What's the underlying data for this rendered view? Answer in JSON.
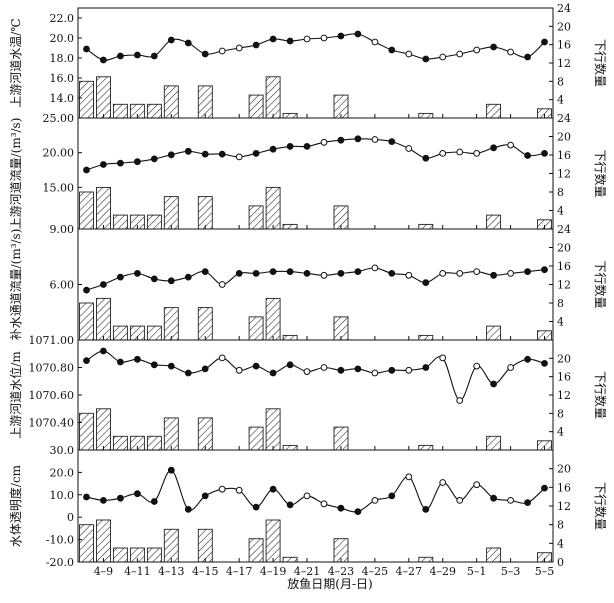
{
  "chart_data": [
    {
      "type": "bar+line",
      "ylabel": "上游河道水温/℃",
      "y2label": "下行数量",
      "ylim": [
        12.0,
        23.0
      ],
      "yticks": [
        14.0,
        16.0,
        18.0,
        20.0,
        22.0
      ],
      "ytick_labels": [
        "14.0",
        "16.0",
        "18.0",
        "20.0",
        "22.0"
      ],
      "y2lim": [
        0,
        24
      ],
      "y2ticks": [
        4,
        8,
        12,
        16,
        20,
        24
      ],
      "line": [
        {
          "date": "4-8",
          "value": 18.9,
          "filled": true
        },
        {
          "date": "4-9",
          "value": 17.8,
          "filled": true
        },
        {
          "date": "4-10",
          "value": 18.2,
          "filled": true
        },
        {
          "date": "4-11",
          "value": 18.3,
          "filled": true
        },
        {
          "date": "4-12",
          "value": 18.2,
          "filled": true
        },
        {
          "date": "4-13",
          "value": 19.8,
          "filled": true
        },
        {
          "date": "4-14",
          "value": 19.5,
          "filled": true
        },
        {
          "date": "4-15",
          "value": 18.4,
          "filled": true
        },
        {
          "date": "4-16",
          "value": 18.7,
          "filled": false
        },
        {
          "date": "4-17",
          "value": 19.0,
          "filled": false
        },
        {
          "date": "4-18",
          "value": 19.3,
          "filled": true
        },
        {
          "date": "4-19",
          "value": 19.9,
          "filled": true
        },
        {
          "date": "4-20",
          "value": 19.7,
          "filled": true
        },
        {
          "date": "4-21",
          "value": 19.9,
          "filled": false
        },
        {
          "date": "4-22",
          "value": 20.0,
          "filled": false
        },
        {
          "date": "4-23",
          "value": 20.2,
          "filled": true
        },
        {
          "date": "4-24",
          "value": 20.4,
          "filled": true
        },
        {
          "date": "4-25",
          "value": 19.6,
          "filled": false
        },
        {
          "date": "4-26",
          "value": 18.8,
          "filled": true
        },
        {
          "date": "4-27",
          "value": 18.4,
          "filled": false
        },
        {
          "date": "4-28",
          "value": 17.9,
          "filled": true
        },
        {
          "date": "4-29",
          "value": 18.1,
          "filled": false
        },
        {
          "date": "4-30",
          "value": 18.4,
          "filled": false
        },
        {
          "date": "5-1",
          "value": 18.8,
          "filled": false
        },
        {
          "date": "5-2",
          "value": 19.1,
          "filled": true
        },
        {
          "date": "5-3",
          "value": 18.6,
          "filled": false
        },
        {
          "date": "5-4",
          "value": 18.1,
          "filled": true
        },
        {
          "date": "5-5",
          "value": 19.6,
          "filled": true
        }
      ]
    },
    {
      "type": "bar+line",
      "ylabel": "上游河道流量/(m³/s)",
      "y2label": "下行数量",
      "ylim": [
        9.0,
        25.0
      ],
      "yticks": [
        9.0,
        15.0,
        20.0,
        25.0
      ],
      "ytick_labels": [
        "9.00",
        "15.00",
        "20.00",
        "25.00"
      ],
      "y2lim": [
        0,
        24
      ],
      "y2ticks": [
        4,
        8,
        12,
        16,
        20,
        24
      ],
      "line": [
        {
          "date": "4-8",
          "value": 17.5,
          "filled": true
        },
        {
          "date": "4-9",
          "value": 18.3,
          "filled": true
        },
        {
          "date": "4-10",
          "value": 18.5,
          "filled": true
        },
        {
          "date": "4-11",
          "value": 18.7,
          "filled": true
        },
        {
          "date": "4-12",
          "value": 19.1,
          "filled": true
        },
        {
          "date": "4-13",
          "value": 19.7,
          "filled": true
        },
        {
          "date": "4-14",
          "value": 20.2,
          "filled": true
        },
        {
          "date": "4-15",
          "value": 19.8,
          "filled": true
        },
        {
          "date": "4-16",
          "value": 19.8,
          "filled": true
        },
        {
          "date": "4-17",
          "value": 19.4,
          "filled": false
        },
        {
          "date": "4-18",
          "value": 19.9,
          "filled": true
        },
        {
          "date": "4-19",
          "value": 20.5,
          "filled": true
        },
        {
          "date": "4-20",
          "value": 20.9,
          "filled": true
        },
        {
          "date": "4-21",
          "value": 20.9,
          "filled": true
        },
        {
          "date": "4-22",
          "value": 21.5,
          "filled": false
        },
        {
          "date": "4-23",
          "value": 21.8,
          "filled": true
        },
        {
          "date": "4-24",
          "value": 22.0,
          "filled": true
        },
        {
          "date": "4-25",
          "value": 21.9,
          "filled": false
        },
        {
          "date": "4-26",
          "value": 21.6,
          "filled": true
        },
        {
          "date": "4-27",
          "value": 20.6,
          "filled": false
        },
        {
          "date": "4-28",
          "value": 19.2,
          "filled": true
        },
        {
          "date": "4-29",
          "value": 19.9,
          "filled": false
        },
        {
          "date": "4-30",
          "value": 20.1,
          "filled": false
        },
        {
          "date": "5-1",
          "value": 19.9,
          "filled": false
        },
        {
          "date": "5-2",
          "value": 20.7,
          "filled": true
        },
        {
          "date": "5-3",
          "value": 21.1,
          "filled": false
        },
        {
          "date": "5-4",
          "value": 19.6,
          "filled": true
        },
        {
          "date": "5-5",
          "value": 19.9,
          "filled": true
        }
      ]
    },
    {
      "type": "bar+line",
      "ylabel": "补水通道流量/(m³/s)",
      "y2label": "下行数量",
      "ylim": [
        3.0,
        9.0
      ],
      "yticks": [
        6.0
      ],
      "ytick_labels": [
        "6.00"
      ],
      "y2lim": [
        0,
        24
      ],
      "y2ticks": [
        4,
        8,
        12,
        16,
        20,
        24
      ],
      "line": [
        {
          "date": "4-8",
          "value": 5.7,
          "filled": true
        },
        {
          "date": "4-9",
          "value": 6.0,
          "filled": true
        },
        {
          "date": "4-10",
          "value": 6.4,
          "filled": true
        },
        {
          "date": "4-11",
          "value": 6.6,
          "filled": true
        },
        {
          "date": "4-12",
          "value": 6.3,
          "filled": true
        },
        {
          "date": "4-13",
          "value": 6.2,
          "filled": true
        },
        {
          "date": "4-14",
          "value": 6.4,
          "filled": true
        },
        {
          "date": "4-15",
          "value": 6.7,
          "filled": true
        },
        {
          "date": "4-16",
          "value": 6.0,
          "filled": false
        },
        {
          "date": "4-17",
          "value": 6.6,
          "filled": true
        },
        {
          "date": "4-18",
          "value": 6.6,
          "filled": true
        },
        {
          "date": "4-19",
          "value": 6.7,
          "filled": true
        },
        {
          "date": "4-20",
          "value": 6.7,
          "filled": true
        },
        {
          "date": "4-21",
          "value": 6.6,
          "filled": true
        },
        {
          "date": "4-22",
          "value": 6.5,
          "filled": false
        },
        {
          "date": "4-23",
          "value": 6.6,
          "filled": true
        },
        {
          "date": "4-24",
          "value": 6.7,
          "filled": true
        },
        {
          "date": "4-25",
          "value": 6.9,
          "filled": false
        },
        {
          "date": "4-26",
          "value": 6.6,
          "filled": true
        },
        {
          "date": "4-27",
          "value": 6.5,
          "filled": false
        },
        {
          "date": "4-28",
          "value": 6.1,
          "filled": true
        },
        {
          "date": "4-29",
          "value": 6.6,
          "filled": false
        },
        {
          "date": "4-30",
          "value": 6.6,
          "filled": false
        },
        {
          "date": "5-1",
          "value": 6.7,
          "filled": false
        },
        {
          "date": "5-2",
          "value": 6.5,
          "filled": true
        },
        {
          "date": "5-3",
          "value": 6.6,
          "filled": false
        },
        {
          "date": "5-4",
          "value": 6.7,
          "filled": true
        },
        {
          "date": "5-5",
          "value": 6.8,
          "filled": true
        }
      ]
    },
    {
      "type": "bar+line",
      "ylabel": "上游河道水位/m",
      "y2label": "下行数量",
      "ylim": [
        1070.2,
        1071.0
      ],
      "yticks": [
        1070.4,
        1070.6,
        1070.8,
        1071.0
      ],
      "ytick_labels": [
        "1070.40",
        "1070.60",
        "1070.80",
        "1071.00"
      ],
      "y2lim": [
        0,
        24
      ],
      "y2ticks": [
        4,
        8,
        12,
        16,
        20
      ],
      "line": [
        {
          "date": "4-8",
          "value": 1070.85,
          "filled": true
        },
        {
          "date": "4-9",
          "value": 1070.92,
          "filled": true
        },
        {
          "date": "4-10",
          "value": 1070.84,
          "filled": true
        },
        {
          "date": "4-11",
          "value": 1070.86,
          "filled": true
        },
        {
          "date": "4-12",
          "value": 1070.82,
          "filled": true
        },
        {
          "date": "4-13",
          "value": 1070.81,
          "filled": true
        },
        {
          "date": "4-14",
          "value": 1070.76,
          "filled": true
        },
        {
          "date": "4-15",
          "value": 1070.79,
          "filled": true
        },
        {
          "date": "4-16",
          "value": 1070.87,
          "filled": false
        },
        {
          "date": "4-17",
          "value": 1070.78,
          "filled": false
        },
        {
          "date": "4-18",
          "value": 1070.81,
          "filled": true
        },
        {
          "date": "4-19",
          "value": 1070.76,
          "filled": true
        },
        {
          "date": "4-20",
          "value": 1070.82,
          "filled": true
        },
        {
          "date": "4-21",
          "value": 1070.77,
          "filled": false
        },
        {
          "date": "4-22",
          "value": 1070.8,
          "filled": false
        },
        {
          "date": "4-23",
          "value": 1070.78,
          "filled": true
        },
        {
          "date": "4-24",
          "value": 1070.79,
          "filled": true
        },
        {
          "date": "4-25",
          "value": 1070.76,
          "filled": false
        },
        {
          "date": "4-26",
          "value": 1070.78,
          "filled": true
        },
        {
          "date": "4-27",
          "value": 1070.78,
          "filled": false
        },
        {
          "date": "4-28",
          "value": 1070.8,
          "filled": true
        },
        {
          "date": "4-29",
          "value": 1070.87,
          "filled": false
        },
        {
          "date": "4-30",
          "value": 1070.56,
          "filled": false
        },
        {
          "date": "5-1",
          "value": 1070.81,
          "filled": false
        },
        {
          "date": "5-2",
          "value": 1070.68,
          "filled": true
        },
        {
          "date": "5-3",
          "value": 1070.8,
          "filled": false
        },
        {
          "date": "5-4",
          "value": 1070.86,
          "filled": true
        },
        {
          "date": "5-5",
          "value": 1070.83,
          "filled": true
        }
      ]
    },
    {
      "type": "bar+line",
      "ylabel": "水体透明度/cm",
      "y2label": "下行数量",
      "xlabel": "放鱼日期(月-日)",
      "ylim": [
        -20.0,
        30.0
      ],
      "yticks": [
        -20.0,
        -10.0,
        0,
        10.0,
        20.0,
        30.0
      ],
      "ytick_labels": [
        "-20.0",
        "-10.0",
        "0",
        "10.0",
        "20.0",
        "30.0"
      ],
      "y2lim": [
        0,
        24
      ],
      "y2ticks": [
        0,
        4,
        8,
        12,
        16,
        20
      ],
      "line": [
        {
          "date": "4-8",
          "value": 9.0,
          "filled": true
        },
        {
          "date": "4-9",
          "value": 7.5,
          "filled": true
        },
        {
          "date": "4-10",
          "value": 8.5,
          "filled": true
        },
        {
          "date": "4-11",
          "value": 10.5,
          "filled": true
        },
        {
          "date": "4-12",
          "value": 7.0,
          "filled": true
        },
        {
          "date": "4-13",
          "value": 21.0,
          "filled": true
        },
        {
          "date": "4-14",
          "value": 3.5,
          "filled": true
        },
        {
          "date": "4-15",
          "value": 9.5,
          "filled": true
        },
        {
          "date": "4-16",
          "value": 12.5,
          "filled": false
        },
        {
          "date": "4-17",
          "value": 12.0,
          "filled": false
        },
        {
          "date": "4-18",
          "value": 4.5,
          "filled": true
        },
        {
          "date": "4-19",
          "value": 12.5,
          "filled": true
        },
        {
          "date": "4-20",
          "value": 5.5,
          "filled": true
        },
        {
          "date": "4-21",
          "value": 9.5,
          "filled": false
        },
        {
          "date": "4-22",
          "value": 6.0,
          "filled": false
        },
        {
          "date": "4-23",
          "value": 4.0,
          "filled": true
        },
        {
          "date": "4-24",
          "value": 2.5,
          "filled": true
        },
        {
          "date": "4-25",
          "value": 7.5,
          "filled": false
        },
        {
          "date": "4-26",
          "value": 9.5,
          "filled": true
        },
        {
          "date": "4-27",
          "value": 18.0,
          "filled": false
        },
        {
          "date": "4-28",
          "value": 3.5,
          "filled": true
        },
        {
          "date": "4-29",
          "value": 15.5,
          "filled": false
        },
        {
          "date": "4-30",
          "value": 7.5,
          "filled": false
        },
        {
          "date": "5-1",
          "value": 14.5,
          "filled": false
        },
        {
          "date": "5-2",
          "value": 8.5,
          "filled": true
        },
        {
          "date": "5-3",
          "value": 7.5,
          "filled": false
        },
        {
          "date": "5-4",
          "value": 6.5,
          "filled": true
        },
        {
          "date": "5-5",
          "value": 13.0,
          "filled": true
        }
      ]
    }
  ],
  "bars": {
    "dates": [
      "4-8",
      "4-9",
      "4-10",
      "4-11",
      "4-12",
      "4-13",
      "4-14",
      "4-15",
      "4-16",
      "4-17",
      "4-18",
      "4-19",
      "4-20",
      "4-21",
      "4-22",
      "4-23",
      "4-24",
      "4-25",
      "4-26",
      "4-27",
      "4-28",
      "4-29",
      "4-30",
      "5-1",
      "5-2",
      "5-3",
      "5-4",
      "5-5"
    ],
    "counts": [
      8,
      9,
      3,
      3,
      3,
      7,
      0,
      7,
      0,
      0,
      5,
      9,
      1,
      0,
      0,
      5,
      0,
      0,
      0,
      0,
      1,
      0,
      0,
      0,
      3,
      0,
      0,
      2
    ]
  },
  "x_ticks": [
    "4–9",
    "4–11",
    "4–13",
    "4–15",
    "4–17",
    "4–19",
    "4–21",
    "4–23",
    "4–25",
    "4–27",
    "4–29",
    "5–1",
    "5–3",
    "5–5"
  ],
  "x_tick_dates": [
    "4-9",
    "4-11",
    "4-13",
    "4-15",
    "4-17",
    "4-19",
    "4-21",
    "4-23",
    "4-25",
    "4-27",
    "4-29",
    "5-1",
    "5-3",
    "5-5"
  ],
  "xlabel": "放鱼日期(月-日)"
}
